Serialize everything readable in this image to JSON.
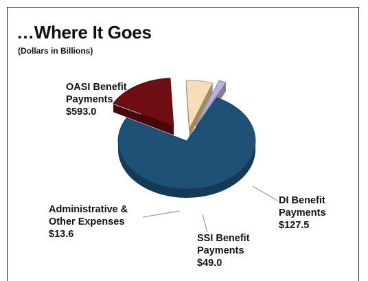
{
  "chart_data": {
    "type": "pie",
    "title": "…Where It Goes",
    "subtitle": "(Dollars in Billions)",
    "slices": [
      {
        "name": "OASI Benefit Payments",
        "label_lines": [
          "OASI Benefit",
          "Payments"
        ],
        "value": 593.0,
        "value_label": "$593.0",
        "color": "#1f5177"
      },
      {
        "name": "DI Benefit Payments",
        "label_lines": [
          "DI Benefit",
          "Payments"
        ],
        "value": 127.5,
        "value_label": "$127.5",
        "color": "#6e0d12"
      },
      {
        "name": "SSI Benefit Payments",
        "label_lines": [
          "SSI Benefit",
          "Payments"
        ],
        "value": 49.0,
        "value_label": "$49.0",
        "color": "#f6dfb8"
      },
      {
        "name": "Administrative & Other Expenses",
        "label_lines": [
          "Administrative &",
          "Other Expenses"
        ],
        "value": 13.6,
        "value_label": "$13.6",
        "color": "#b7b2d6"
      }
    ]
  }
}
